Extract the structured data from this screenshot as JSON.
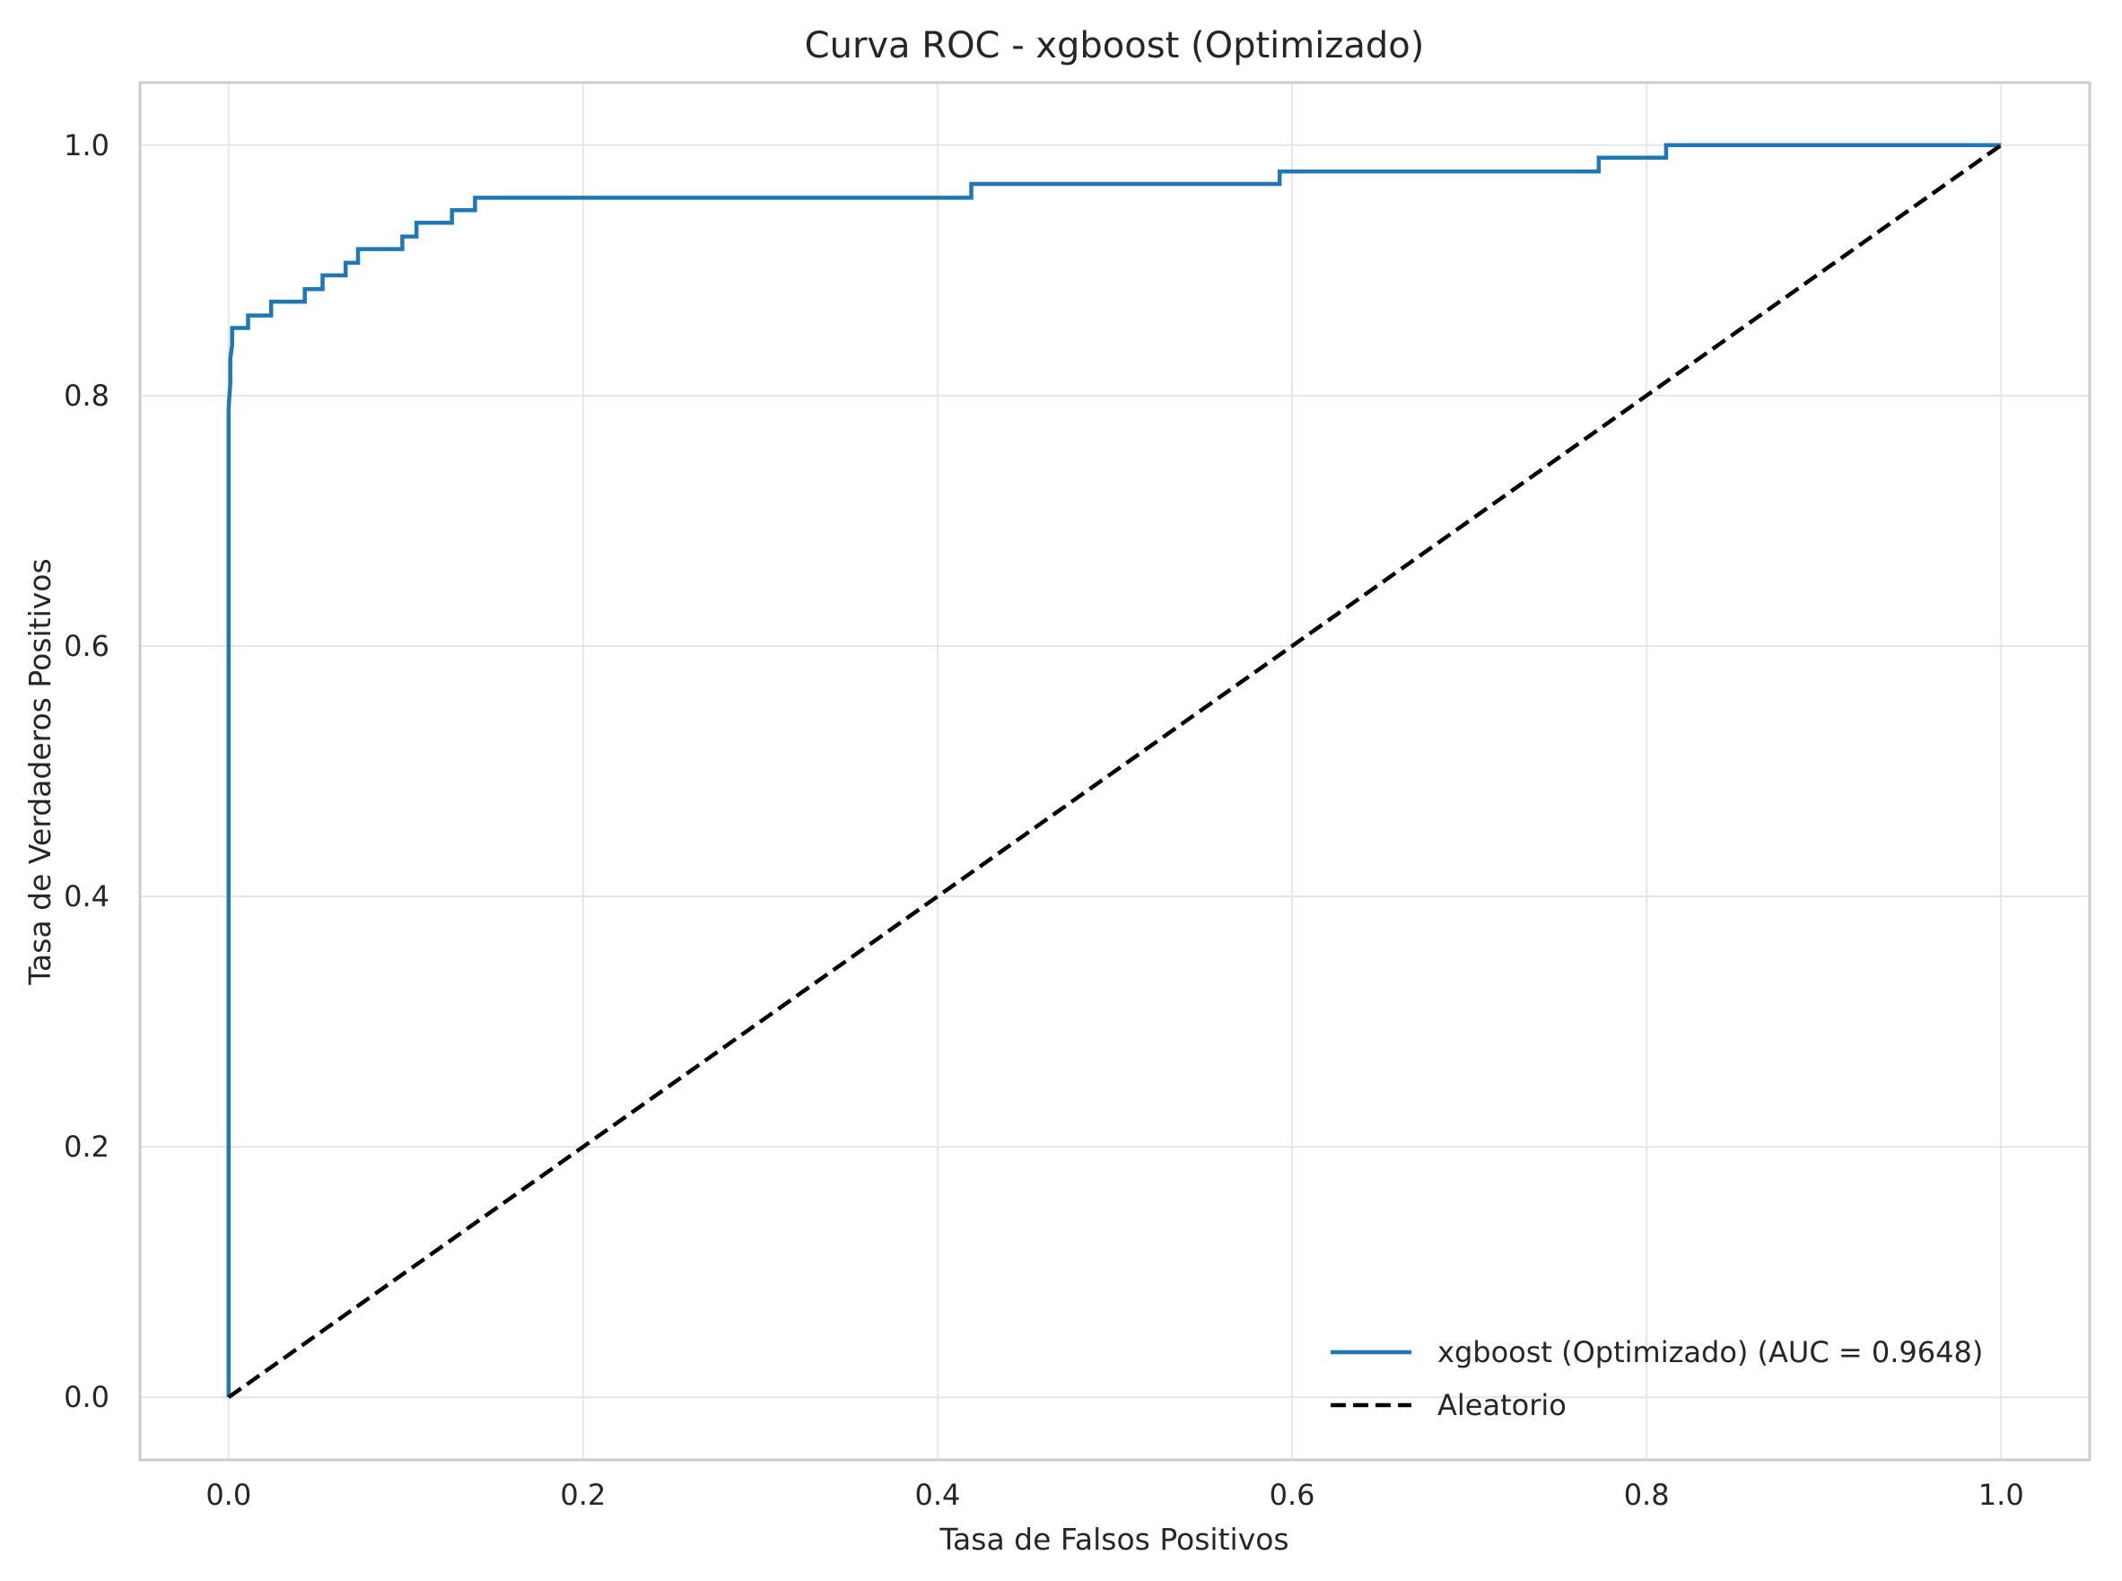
{
  "chart_data": {
    "type": "line",
    "title": "Curva ROC - xgboost (Optimizado)",
    "xlabel": "Tasa de Falsos Positivos",
    "ylabel": "Tasa de Verdaderos Positivos",
    "xlim": [
      -0.05,
      1.05
    ],
    "ylim": [
      -0.05,
      1.05
    ],
    "xticks": [
      0.0,
      0.2,
      0.4,
      0.6,
      0.8,
      1.0
    ],
    "yticks": [
      0.0,
      0.2,
      0.4,
      0.6,
      0.8,
      1.0
    ],
    "xtick_labels": [
      "0.0",
      "0.2",
      "0.4",
      "0.6",
      "0.8",
      "1.0"
    ],
    "ytick_labels": [
      "0.0",
      "0.2",
      "0.4",
      "0.6",
      "0.8",
      "1.0"
    ],
    "grid": true,
    "legend_position": "lower-right",
    "series": [
      {
        "name": "xgboost (Optimizado) (AUC = 0.9648)",
        "color": "#1f77b4",
        "style": "solid",
        "x": [
          0.0,
          0.0,
          0.001,
          0.001,
          0.002,
          0.002,
          0.002,
          0.011,
          0.011,
          0.024,
          0.024,
          0.043,
          0.043,
          0.053,
          0.053,
          0.066,
          0.066,
          0.073,
          0.073,
          0.098,
          0.098,
          0.106,
          0.106,
          0.126,
          0.126,
          0.139,
          0.139,
          0.419,
          0.419,
          0.593,
          0.593,
          0.773,
          0.773,
          0.811,
          0.811,
          1.0
        ],
        "y": [
          0.0,
          0.79,
          0.81,
          0.83,
          0.84,
          0.854,
          0.854,
          0.854,
          0.864,
          0.864,
          0.875,
          0.875,
          0.885,
          0.885,
          0.896,
          0.896,
          0.906,
          0.906,
          0.917,
          0.917,
          0.927,
          0.927,
          0.938,
          0.938,
          0.948,
          0.948,
          0.958,
          0.958,
          0.969,
          0.969,
          0.979,
          0.979,
          0.99,
          0.99,
          1.0,
          1.0
        ]
      },
      {
        "name": "Aleatorio",
        "color": "#000000",
        "style": "dashed",
        "x": [
          0.0,
          1.0
        ],
        "y": [
          0.0,
          1.0
        ]
      }
    ]
  }
}
